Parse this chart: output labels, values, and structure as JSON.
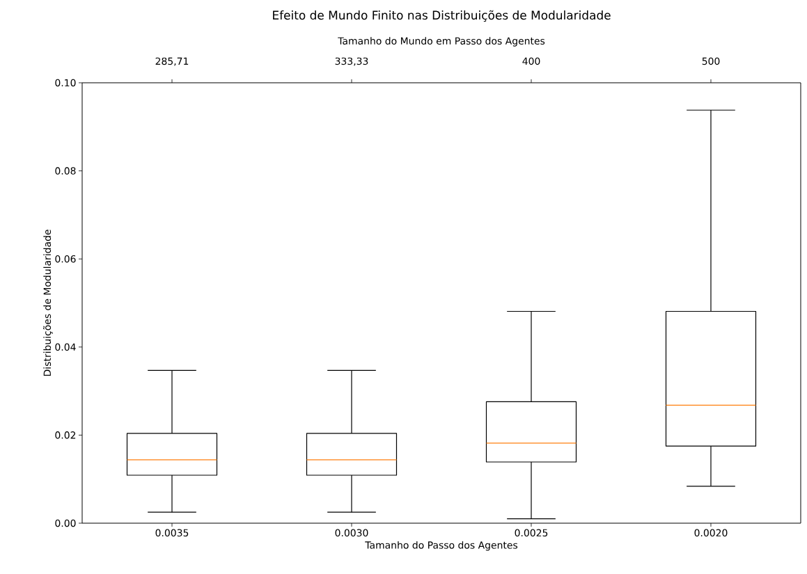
{
  "chart_data": {
    "type": "box",
    "title": "Efeito de Mundo Finito nas Distribuições de Modularidade",
    "xlabel": "Tamanho do Passo dos Agentes",
    "ylabel": "Distribuições de Modularidade",
    "x2label": "Tamanho do Mundo em Passo dos Agentes",
    "categories": [
      "0.0035",
      "0.0030",
      "0.0025",
      "0.0020"
    ],
    "boxes": [
      {
        "low": 0.0025,
        "q1": 0.0109,
        "median": 0.0144,
        "q3": 0.0204,
        "high": 0.0347
      },
      {
        "low": 0.0025,
        "q1": 0.0109,
        "median": 0.0144,
        "q3": 0.0204,
        "high": 0.0347
      },
      {
        "low": 0.001,
        "q1": 0.0139,
        "median": 0.0182,
        "q3": 0.0276,
        "high": 0.0481
      },
      {
        "low": 0.0084,
        "q1": 0.0175,
        "median": 0.0268,
        "q3": 0.0481,
        "high": 0.0938
      }
    ],
    "ylim": [
      0,
      0.1
    ],
    "yticks": [
      {
        "value": 0,
        "label": "0.00"
      },
      {
        "value": 0.02,
        "label": "0.02"
      },
      {
        "value": 0.04,
        "label": "0.04"
      },
      {
        "value": 0.06,
        "label": "0.06"
      },
      {
        "value": 0.08,
        "label": "0.08"
      },
      {
        "value": 0.1,
        "label": "0.10"
      }
    ],
    "annotations": [
      "285,71",
      "333,33",
      "400",
      "500"
    ],
    "grid": false
  }
}
